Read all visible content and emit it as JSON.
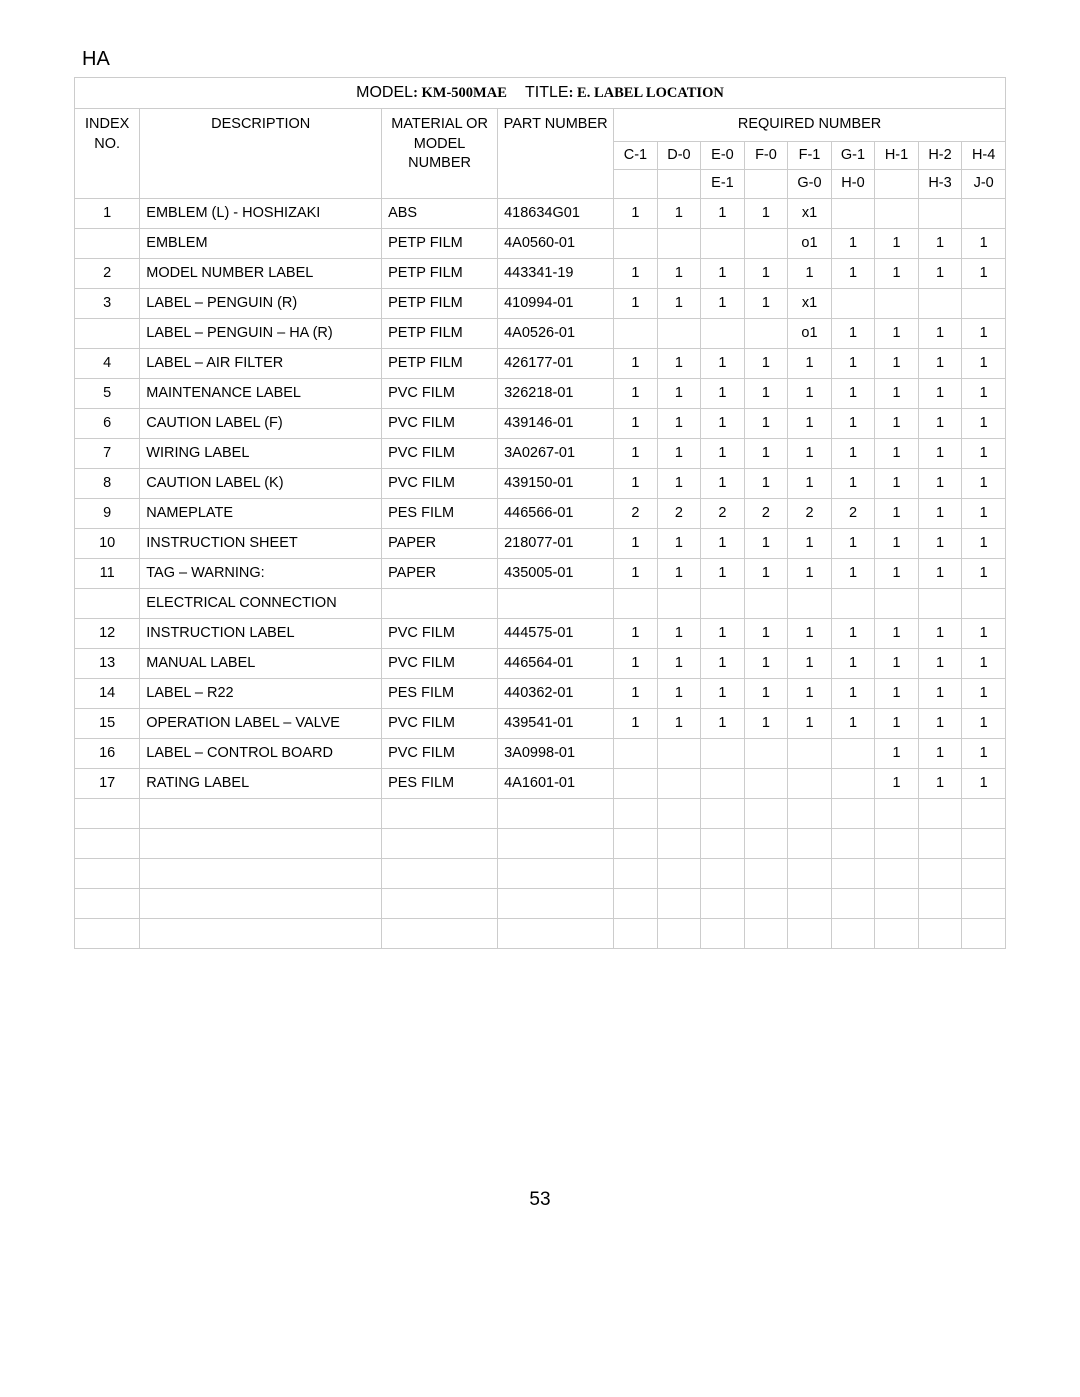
{
  "header_tag": "HA",
  "title_line": {
    "model_label": "MODEL",
    "model_value": ": KM-500MAE",
    "title_label": "TITLE",
    "title_value": ": E. LABEL LOCATION"
  },
  "columns": {
    "index": "INDEX NO.",
    "description": "DESCRIPTION",
    "material": "MATERIAL OR MODEL NUMBER",
    "part": "PART NUMBER",
    "required": "REQUIRED NUMBER"
  },
  "qty_cols_top": [
    "C-1",
    "D-0",
    "E-0",
    "F-0",
    "F-1",
    "G-1",
    "H-1",
    "H-2",
    "H-4"
  ],
  "qty_cols_bottom": [
    "",
    "",
    "E-1",
    "",
    "G-0",
    "H-0",
    "",
    "H-3",
    "J-0"
  ],
  "rows": [
    {
      "idx": "1",
      "desc": "EMBLEM (L) - HOSHIZAKI",
      "mat": "ABS",
      "part": "418634G01",
      "q": [
        "1",
        "1",
        "1",
        "1",
        "x1",
        "",
        "",
        "",
        ""
      ]
    },
    {
      "idx": "",
      "desc": "EMBLEM",
      "mat": "PETP FILM",
      "part": "4A0560-01",
      "q": [
        "",
        "",
        "",
        "",
        "o1",
        "1",
        "1",
        "1",
        "1"
      ]
    },
    {
      "idx": "2",
      "desc": "MODEL NUMBER LABEL",
      "mat": "PETP FILM",
      "part": "443341-19",
      "q": [
        "1",
        "1",
        "1",
        "1",
        "1",
        "1",
        "1",
        "1",
        "1"
      ]
    },
    {
      "idx": "3",
      "desc": "LABEL – PENGUIN (R)",
      "mat": "PETP FILM",
      "part": "410994-01",
      "q": [
        "1",
        "1",
        "1",
        "1",
        "x1",
        "",
        "",
        "",
        ""
      ]
    },
    {
      "idx": "",
      "desc": "LABEL – PENGUIN – HA (R)",
      "mat": "PETP FILM",
      "part": "4A0526-01",
      "q": [
        "",
        "",
        "",
        "",
        "o1",
        "1",
        "1",
        "1",
        "1"
      ]
    },
    {
      "idx": "4",
      "desc": "LABEL – AIR FILTER",
      "mat": "PETP FILM",
      "part": "426177-01",
      "q": [
        "1",
        "1",
        "1",
        "1",
        "1",
        "1",
        "1",
        "1",
        "1"
      ]
    },
    {
      "idx": "5",
      "desc": "MAINTENANCE LABEL",
      "mat": "PVC FILM",
      "part": "326218-01",
      "q": [
        "1",
        "1",
        "1",
        "1",
        "1",
        "1",
        "1",
        "1",
        "1"
      ]
    },
    {
      "idx": "6",
      "desc": "CAUTION LABEL (F)",
      "mat": "PVC FILM",
      "part": "439146-01",
      "q": [
        "1",
        "1",
        "1",
        "1",
        "1",
        "1",
        "1",
        "1",
        "1"
      ]
    },
    {
      "idx": "7",
      "desc": "WIRING LABEL",
      "mat": "PVC FILM",
      "part": "3A0267-01",
      "q": [
        "1",
        "1",
        "1",
        "1",
        "1",
        "1",
        "1",
        "1",
        "1"
      ]
    },
    {
      "idx": "8",
      "desc": "CAUTION LABEL (K)",
      "mat": "PVC FILM",
      "part": "439150-01",
      "q": [
        "1",
        "1",
        "1",
        "1",
        "1",
        "1",
        "1",
        "1",
        "1"
      ]
    },
    {
      "idx": "9",
      "desc": "NAMEPLATE",
      "mat": "PES FILM",
      "part": "446566-01",
      "q": [
        "2",
        "2",
        "2",
        "2",
        "2",
        "2",
        "1",
        "1",
        "1"
      ]
    },
    {
      "idx": "10",
      "desc": "INSTRUCTION SHEET",
      "mat": "PAPER",
      "part": "218077-01",
      "q": [
        "1",
        "1",
        "1",
        "1",
        "1",
        "1",
        "1",
        "1",
        "1"
      ]
    },
    {
      "idx": "11",
      "desc": "TAG – WARNING:",
      "mat": "PAPER",
      "part": "435005-01",
      "q": [
        "1",
        "1",
        "1",
        "1",
        "1",
        "1",
        "1",
        "1",
        "1"
      ]
    },
    {
      "idx": "",
      "desc": "ELECTRICAL CONNECTION",
      "mat": "",
      "part": "",
      "q": [
        "",
        "",
        "",
        "",
        "",
        "",
        "",
        "",
        ""
      ]
    },
    {
      "idx": "12",
      "desc": "INSTRUCTION LABEL",
      "mat": "PVC FILM",
      "part": "444575-01",
      "q": [
        "1",
        "1",
        "1",
        "1",
        "1",
        "1",
        "1",
        "1",
        "1"
      ]
    },
    {
      "idx": "13",
      "desc": "MANUAL LABEL",
      "mat": "PVC FILM",
      "part": "446564-01",
      "q": [
        "1",
        "1",
        "1",
        "1",
        "1",
        "1",
        "1",
        "1",
        "1"
      ]
    },
    {
      "idx": "14",
      "desc": "LABEL – R22",
      "mat": "PES FILM",
      "part": "440362-01",
      "q": [
        "1",
        "1",
        "1",
        "1",
        "1",
        "1",
        "1",
        "1",
        "1"
      ]
    },
    {
      "idx": "15",
      "desc": "OPERATION LABEL – VALVE",
      "mat": "PVC FILM",
      "part": "439541-01",
      "q": [
        "1",
        "1",
        "1",
        "1",
        "1",
        "1",
        "1",
        "1",
        "1"
      ]
    },
    {
      "idx": "16",
      "desc": "LABEL – CONTROL BOARD",
      "mat": "PVC FILM",
      "part": "3A0998-01",
      "q": [
        "",
        "",
        "",
        "",
        "",
        "",
        "1",
        "1",
        "1"
      ]
    },
    {
      "idx": "17",
      "desc": "RATING LABEL",
      "mat": "PES FILM",
      "part": "4A1601-01",
      "q": [
        "",
        "",
        "",
        "",
        "",
        "",
        "1",
        "1",
        "1"
      ]
    },
    {
      "idx": "",
      "desc": "",
      "mat": "",
      "part": "",
      "q": [
        "",
        "",
        "",
        "",
        "",
        "",
        "",
        "",
        ""
      ]
    },
    {
      "idx": "",
      "desc": "",
      "mat": "",
      "part": "",
      "q": [
        "",
        "",
        "",
        "",
        "",
        "",
        "",
        "",
        ""
      ]
    },
    {
      "idx": "",
      "desc": "",
      "mat": "",
      "part": "",
      "q": [
        "",
        "",
        "",
        "",
        "",
        "",
        "",
        "",
        ""
      ]
    },
    {
      "idx": "",
      "desc": "",
      "mat": "",
      "part": "",
      "q": [
        "",
        "",
        "",
        "",
        "",
        "",
        "",
        "",
        ""
      ]
    },
    {
      "idx": "",
      "desc": "",
      "mat": "",
      "part": "",
      "q": [
        "",
        "",
        "",
        "",
        "",
        "",
        "",
        "",
        ""
      ]
    }
  ],
  "page_number": "53"
}
